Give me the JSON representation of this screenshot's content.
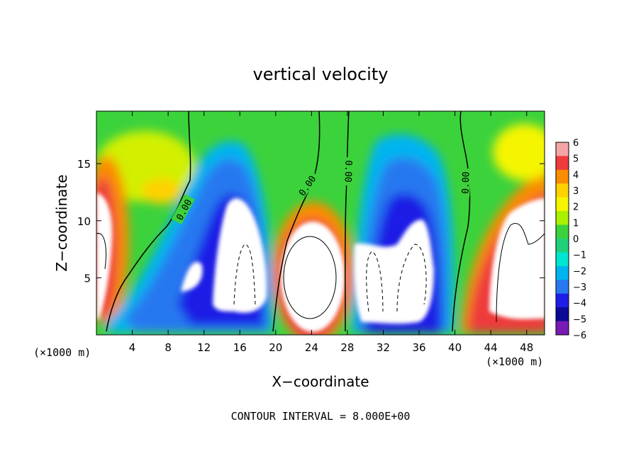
{
  "chart_data": {
    "type": "heatmap",
    "title": "vertical velocity",
    "xlabel": "X−coordinate",
    "ylabel": "Z−coordinate",
    "x_unit_left": "(×1000 m)",
    "x_unit_right": "(×1000 m)",
    "footer": "CONTOUR INTERVAL = 8.000E+00",
    "xlim": [
      0,
      50
    ],
    "ylim": [
      0,
      19.6
    ],
    "x_ticks": [
      {
        "v": 4,
        "label": "4"
      },
      {
        "v": 8,
        "label": "8"
      },
      {
        "v": 12,
        "label": "12"
      },
      {
        "v": 16,
        "label": "16"
      },
      {
        "v": 20,
        "label": "20"
      },
      {
        "v": 24,
        "label": "24"
      },
      {
        "v": 28,
        "label": "28"
      },
      {
        "v": 32,
        "label": "32"
      },
      {
        "v": 36,
        "label": "36"
      },
      {
        "v": 40,
        "label": "40"
      },
      {
        "v": 44,
        "label": "44"
      },
      {
        "v": 48,
        "label": "48"
      }
    ],
    "y_ticks": [
      {
        "v": 5,
        "label": "5"
      },
      {
        "v": 10,
        "label": "10"
      },
      {
        "v": 15,
        "label": "15"
      }
    ],
    "colorbar": {
      "min": -6,
      "max": 6,
      "ticks": [
        "6",
        "5",
        "4",
        "3",
        "2",
        "1",
        "0",
        "−1",
        "−2",
        "−3",
        "−4",
        "−5",
        "−6"
      ],
      "colors": [
        "#f4a6a6",
        "#ee3b3b",
        "#fa8c00",
        "#ffd200",
        "#f5f500",
        "#aaf000",
        "#3cd23c",
        "#21d17a",
        "#00e6d0",
        "#00b4f0",
        "#2878f0",
        "#1e1ee6",
        "#0a0a96",
        "#7a1ab4"
      ]
    },
    "zero_contour_labels": [
      "0.00",
      "0.00",
      "0.00",
      "0.00"
    ],
    "features": [
      {
        "kind": "updraft",
        "x": 1.2,
        "z": 7,
        "strength": 9
      },
      {
        "kind": "downdraft",
        "x": 13,
        "z": 8,
        "strength": -6
      },
      {
        "kind": "downdraft",
        "x": 16.5,
        "z": 6.5,
        "strength": -9
      },
      {
        "kind": "updraft",
        "x": 24,
        "z": 6,
        "strength": 10
      },
      {
        "kind": "downdraft",
        "x": 34,
        "z": 8,
        "strength": -7
      },
      {
        "kind": "downdraft",
        "x": 32.5,
        "z": 5,
        "strength": -9
      },
      {
        "kind": "updraft",
        "x": 47.5,
        "z": 6,
        "strength": 9
      }
    ]
  }
}
